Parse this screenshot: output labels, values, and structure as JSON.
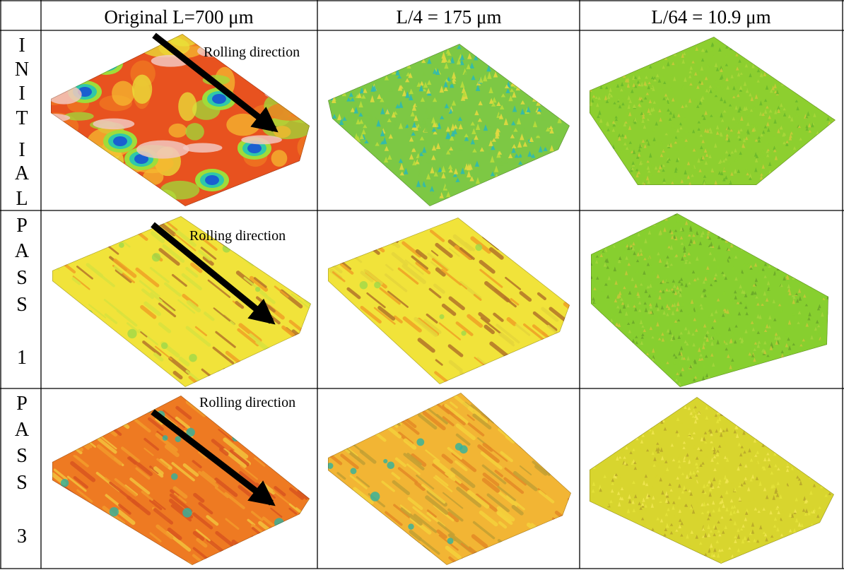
{
  "columns": [
    {
      "label": "Original L=700 μm"
    },
    {
      "label": "L/4 = 175 μm"
    },
    {
      "label": "L/64 = 10.9 μm"
    }
  ],
  "rows": [
    {
      "label_chars": [
        "I",
        "N",
        "I",
        "T",
        "I",
        "A",
        "L"
      ],
      "annotation": "Rolling direction",
      "surfaces": [
        {
          "texture": "craters",
          "palette": [
            "#e8521f",
            "#f07a22",
            "#f5b930",
            "#e9e23a",
            "#9fdc3a",
            "#2fc8a8",
            "#1a5fd0",
            "#f2c7c0"
          ]
        },
        {
          "texture": "fine",
          "palette": [
            "#7dc844",
            "#b9dc3c",
            "#2fb9b0",
            "#e2d840"
          ]
        },
        {
          "texture": "very-fine",
          "palette": [
            "#8dcf2f",
            "#a7d63a",
            "#6bb82c",
            "#c9c83a"
          ]
        }
      ]
    },
    {
      "label_chars": [
        "P",
        "A",
        "S",
        "S",
        "",
        "1"
      ],
      "annotation": "Rolling direction",
      "surfaces": [
        {
          "texture": "streaks",
          "palette": [
            "#f1e33a",
            "#d9e23f",
            "#f0a226",
            "#b7752a",
            "#9fd84a"
          ]
        },
        {
          "texture": "streaks",
          "palette": [
            "#f1e33a",
            "#e6d63b",
            "#f0a226",
            "#b37428",
            "#9fd84a"
          ]
        },
        {
          "texture": "very-fine",
          "palette": [
            "#87cf2f",
            "#a2d53c",
            "#6ba92a",
            "#c6c53a"
          ]
        }
      ]
    },
    {
      "label_chars": [
        "P",
        "A",
        "S",
        "S",
        "",
        "3"
      ],
      "annotation": "Rolling direction",
      "surfaces": [
        {
          "texture": "streaks-dense",
          "palette": [
            "#ee7a22",
            "#f29a2b",
            "#d9551f",
            "#f2c23c",
            "#2eb3a0"
          ]
        },
        {
          "texture": "streaks-dense",
          "palette": [
            "#f2b534",
            "#f5d23c",
            "#e48a26",
            "#c4a033",
            "#2eb3a0"
          ]
        },
        {
          "texture": "very-fine",
          "palette": [
            "#d8d52e",
            "#e4e23a",
            "#b9a72a",
            "#efe650"
          ]
        }
      ]
    }
  ]
}
